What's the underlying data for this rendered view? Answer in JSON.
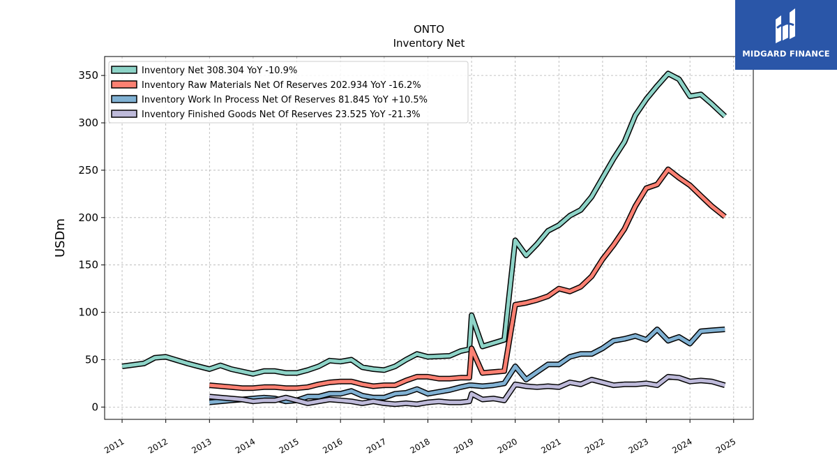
{
  "header": {
    "ticker": "ONTO",
    "subtitle": "Inventory Net",
    "brand": "MIDGARD FINANCE"
  },
  "chart_data": {
    "type": "line",
    "title": "ONTO",
    "subtitle": "Inventory Net",
    "xlabel": "",
    "ylabel": "USDm",
    "xlim": [
      2010.6,
      2025.45
    ],
    "ylim": [
      -13,
      370
    ],
    "yticks": [
      0,
      50,
      100,
      150,
      200,
      250,
      300,
      350
    ],
    "xticks": [
      "2011",
      "2012",
      "2013",
      "2014",
      "2015",
      "2016",
      "2017",
      "2018",
      "2019",
      "2020",
      "2021",
      "2022",
      "2023",
      "2024",
      "2025"
    ],
    "grid": true,
    "legend_position": "top-left",
    "series": [
      {
        "name": "Inventory Net  308.304 YoY -10.9%",
        "color": "#8dd3c7",
        "points": [
          [
            2011.0,
            43
          ],
          [
            2011.5,
            46
          ],
          [
            2011.75,
            52
          ],
          [
            2012.0,
            53
          ],
          [
            2012.5,
            46
          ],
          [
            2012.75,
            43
          ],
          [
            2013.0,
            40
          ],
          [
            2013.25,
            44
          ],
          [
            2013.5,
            40
          ],
          [
            2014.0,
            35
          ],
          [
            2014.25,
            38
          ],
          [
            2014.5,
            38
          ],
          [
            2014.75,
            36
          ],
          [
            2015.0,
            36
          ],
          [
            2015.25,
            39
          ],
          [
            2015.5,
            43
          ],
          [
            2015.75,
            49
          ],
          [
            2016.0,
            48
          ],
          [
            2016.25,
            50
          ],
          [
            2016.5,
            42
          ],
          [
            2016.75,
            40
          ],
          [
            2017.0,
            39
          ],
          [
            2017.25,
            43
          ],
          [
            2017.5,
            50
          ],
          [
            2017.75,
            56
          ],
          [
            2018.0,
            53
          ],
          [
            2018.5,
            54
          ],
          [
            2018.75,
            59
          ],
          [
            2018.95,
            61
          ],
          [
            2019.0,
            97
          ],
          [
            2019.25,
            64
          ],
          [
            2019.75,
            71
          ],
          [
            2020.0,
            176
          ],
          [
            2020.25,
            160
          ],
          [
            2020.5,
            172
          ],
          [
            2020.75,
            186
          ],
          [
            2021.0,
            192
          ],
          [
            2021.25,
            202
          ],
          [
            2021.5,
            208
          ],
          [
            2021.75,
            222
          ],
          [
            2022.0,
            242
          ],
          [
            2022.25,
            262
          ],
          [
            2022.5,
            280
          ],
          [
            2022.75,
            308
          ],
          [
            2023.0,
            325
          ],
          [
            2023.25,
            339
          ],
          [
            2023.5,
            352
          ],
          [
            2023.75,
            346
          ],
          [
            2024.0,
            328
          ],
          [
            2024.25,
            330
          ],
          [
            2024.5,
            320
          ],
          [
            2024.8,
            307
          ]
        ]
      },
      {
        "name": "Inventory Raw Materials Net Of Reserves  202.934 YoY -16.2%",
        "color": "#fb8072",
        "points": [
          [
            2013.0,
            23
          ],
          [
            2013.5,
            21
          ],
          [
            2013.75,
            20
          ],
          [
            2014.0,
            20
          ],
          [
            2014.25,
            21
          ],
          [
            2014.5,
            21
          ],
          [
            2014.75,
            20
          ],
          [
            2015.0,
            20
          ],
          [
            2015.25,
            21
          ],
          [
            2015.5,
            24
          ],
          [
            2015.75,
            26
          ],
          [
            2016.0,
            27
          ],
          [
            2016.25,
            27
          ],
          [
            2016.5,
            24
          ],
          [
            2016.75,
            22
          ],
          [
            2017.0,
            23
          ],
          [
            2017.25,
            23
          ],
          [
            2017.5,
            28
          ],
          [
            2017.75,
            32
          ],
          [
            2018.0,
            32
          ],
          [
            2018.25,
            30
          ],
          [
            2018.5,
            30
          ],
          [
            2018.75,
            31
          ],
          [
            2018.95,
            31
          ],
          [
            2019.0,
            62
          ],
          [
            2019.25,
            36
          ],
          [
            2019.5,
            37
          ],
          [
            2019.75,
            38
          ],
          [
            2020.0,
            108
          ],
          [
            2020.25,
            110
          ],
          [
            2020.5,
            113
          ],
          [
            2020.75,
            117
          ],
          [
            2021.0,
            125
          ],
          [
            2021.25,
            122
          ],
          [
            2021.5,
            127
          ],
          [
            2021.75,
            138
          ],
          [
            2022.0,
            156
          ],
          [
            2022.25,
            171
          ],
          [
            2022.5,
            188
          ],
          [
            2022.75,
            212
          ],
          [
            2023.0,
            231
          ],
          [
            2023.25,
            235
          ],
          [
            2023.5,
            251
          ],
          [
            2023.75,
            242
          ],
          [
            2024.0,
            234
          ],
          [
            2024.25,
            223
          ],
          [
            2024.5,
            212
          ],
          [
            2024.8,
            201
          ]
        ]
      },
      {
        "name": "Inventory Work In Process Net Of Reserves  81.845 YoY +10.5%",
        "color": "#80b1d3",
        "points": [
          [
            2013.0,
            5
          ],
          [
            2013.5,
            7
          ],
          [
            2013.75,
            8
          ],
          [
            2014.0,
            9
          ],
          [
            2014.25,
            10
          ],
          [
            2014.5,
            9
          ],
          [
            2014.75,
            6
          ],
          [
            2015.0,
            7
          ],
          [
            2015.25,
            11
          ],
          [
            2015.5,
            11
          ],
          [
            2015.75,
            14
          ],
          [
            2016.0,
            14
          ],
          [
            2016.25,
            17
          ],
          [
            2016.5,
            12
          ],
          [
            2016.75,
            10
          ],
          [
            2017.0,
            10
          ],
          [
            2017.25,
            14
          ],
          [
            2017.5,
            15
          ],
          [
            2017.75,
            19
          ],
          [
            2018.0,
            14
          ],
          [
            2018.25,
            16
          ],
          [
            2018.5,
            18
          ],
          [
            2018.75,
            21
          ],
          [
            2018.95,
            23
          ],
          [
            2019.0,
            23
          ],
          [
            2019.25,
            22
          ],
          [
            2019.5,
            23
          ],
          [
            2019.75,
            25
          ],
          [
            2020.0,
            43
          ],
          [
            2020.25,
            29
          ],
          [
            2020.5,
            37
          ],
          [
            2020.75,
            45
          ],
          [
            2021.0,
            45
          ],
          [
            2021.25,
            53
          ],
          [
            2021.5,
            56
          ],
          [
            2021.75,
            56
          ],
          [
            2022.0,
            62
          ],
          [
            2022.25,
            70
          ],
          [
            2022.5,
            72
          ],
          [
            2022.75,
            75
          ],
          [
            2023.0,
            71
          ],
          [
            2023.25,
            82
          ],
          [
            2023.5,
            70
          ],
          [
            2023.75,
            74
          ],
          [
            2024.0,
            67
          ],
          [
            2024.25,
            80
          ],
          [
            2024.5,
            81
          ],
          [
            2024.8,
            82
          ]
        ]
      },
      {
        "name": "Inventory Finished Goods Net Of Reserves  23.525 YoY -21.3%",
        "color": "#bebada",
        "points": [
          [
            2013.0,
            11
          ],
          [
            2013.5,
            9
          ],
          [
            2013.75,
            8
          ],
          [
            2014.0,
            6
          ],
          [
            2014.25,
            7
          ],
          [
            2014.5,
            7
          ],
          [
            2014.75,
            10
          ],
          [
            2015.0,
            7
          ],
          [
            2015.25,
            4
          ],
          [
            2015.5,
            6
          ],
          [
            2015.75,
            8
          ],
          [
            2016.0,
            7
          ],
          [
            2016.25,
            6
          ],
          [
            2016.5,
            4
          ],
          [
            2016.75,
            6
          ],
          [
            2017.0,
            4
          ],
          [
            2017.25,
            3
          ],
          [
            2017.5,
            4
          ],
          [
            2017.75,
            3
          ],
          [
            2018.0,
            5
          ],
          [
            2018.25,
            6
          ],
          [
            2018.5,
            5
          ],
          [
            2018.75,
            5
          ],
          [
            2018.95,
            6
          ],
          [
            2019.0,
            14
          ],
          [
            2019.25,
            8
          ],
          [
            2019.5,
            9
          ],
          [
            2019.75,
            7
          ],
          [
            2020.0,
            24
          ],
          [
            2020.25,
            22
          ],
          [
            2020.5,
            21
          ],
          [
            2020.75,
            22
          ],
          [
            2021.0,
            21
          ],
          [
            2021.25,
            26
          ],
          [
            2021.5,
            24
          ],
          [
            2021.75,
            29
          ],
          [
            2022.0,
            26
          ],
          [
            2022.25,
            23
          ],
          [
            2022.5,
            24
          ],
          [
            2022.75,
            24
          ],
          [
            2023.0,
            25
          ],
          [
            2023.25,
            23
          ],
          [
            2023.5,
            32
          ],
          [
            2023.75,
            31
          ],
          [
            2024.0,
            27
          ],
          [
            2024.25,
            28
          ],
          [
            2024.5,
            27
          ],
          [
            2024.8,
            23
          ]
        ]
      }
    ]
  }
}
